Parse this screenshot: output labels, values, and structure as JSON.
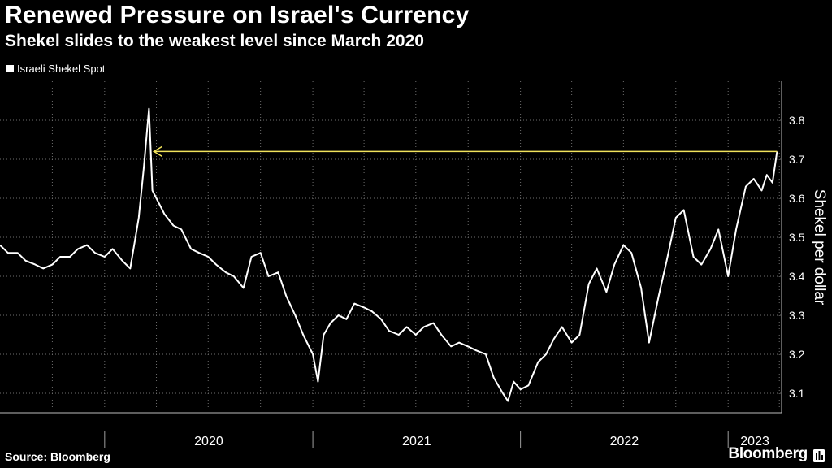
{
  "header": {
    "title": "Renewed Pressure on Israel's Currency",
    "subtitle": "Shekel slides to the weakest level since March 2020"
  },
  "footer": {
    "source": "Source: Bloomberg",
    "brand": "Bloomberg"
  },
  "icons": {
    "brand": "bloomberg-terminal-icon"
  },
  "colors": {
    "background": "#000000",
    "line": "#ffffff",
    "annotation": "#f2e35c",
    "grid": "#6e6e6e"
  },
  "chart_data": {
    "type": "line",
    "title": "Renewed Pressure on Israel's Currency",
    "subtitle": "Shekel slides to the weakest level since March 2020",
    "ylabel": "Shekel per dollar",
    "xlabel": "",
    "ylim": [
      3.05,
      3.9
    ],
    "xlim": [
      "2019-07-01",
      "2023-04-05"
    ],
    "y_ticks": [
      "3.1",
      "3.2",
      "3.3",
      "3.4",
      "3.5",
      "3.6",
      "3.7",
      "3.8"
    ],
    "x_ticks": [
      "2020",
      "2021",
      "2022",
      "2023"
    ],
    "grid": "dotted",
    "y_axis_side": "right",
    "legend": "top-left",
    "annotation": {
      "type": "arrow",
      "level": 3.72,
      "from": "2023-03-28",
      "to": "2020-03-19"
    },
    "series": [
      {
        "name": "Israeli Shekel Spot",
        "points": [
          [
            "2019-07-01",
            3.48
          ],
          [
            "2019-07-15",
            3.46
          ],
          [
            "2019-08-01",
            3.46
          ],
          [
            "2019-08-15",
            3.44
          ],
          [
            "2019-09-01",
            3.43
          ],
          [
            "2019-09-15",
            3.42
          ],
          [
            "2019-10-01",
            3.43
          ],
          [
            "2019-10-15",
            3.45
          ],
          [
            "2019-11-01",
            3.45
          ],
          [
            "2019-11-15",
            3.47
          ],
          [
            "2019-12-01",
            3.48
          ],
          [
            "2019-12-15",
            3.46
          ],
          [
            "2020-01-01",
            3.45
          ],
          [
            "2020-01-15",
            3.47
          ],
          [
            "2020-02-01",
            3.44
          ],
          [
            "2020-02-15",
            3.42
          ],
          [
            "2020-03-01",
            3.55
          ],
          [
            "2020-03-10",
            3.68
          ],
          [
            "2020-03-19",
            3.83
          ],
          [
            "2020-03-25",
            3.62
          ],
          [
            "2020-04-01",
            3.6
          ],
          [
            "2020-04-15",
            3.56
          ],
          [
            "2020-05-01",
            3.53
          ],
          [
            "2020-05-15",
            3.52
          ],
          [
            "2020-06-01",
            3.47
          ],
          [
            "2020-06-15",
            3.46
          ],
          [
            "2020-07-01",
            3.45
          ],
          [
            "2020-07-15",
            3.43
          ],
          [
            "2020-08-01",
            3.41
          ],
          [
            "2020-08-15",
            3.4
          ],
          [
            "2020-09-01",
            3.37
          ],
          [
            "2020-09-15",
            3.45
          ],
          [
            "2020-10-01",
            3.46
          ],
          [
            "2020-10-15",
            3.4
          ],
          [
            "2020-11-01",
            3.41
          ],
          [
            "2020-11-15",
            3.35
          ],
          [
            "2020-12-01",
            3.3
          ],
          [
            "2020-12-15",
            3.25
          ],
          [
            "2021-01-01",
            3.2
          ],
          [
            "2021-01-10",
            3.13
          ],
          [
            "2021-01-20",
            3.25
          ],
          [
            "2021-02-01",
            3.28
          ],
          [
            "2021-02-15",
            3.3
          ],
          [
            "2021-03-01",
            3.29
          ],
          [
            "2021-03-15",
            3.33
          ],
          [
            "2021-04-01",
            3.32
          ],
          [
            "2021-04-15",
            3.31
          ],
          [
            "2021-05-01",
            3.29
          ],
          [
            "2021-05-15",
            3.26
          ],
          [
            "2021-06-01",
            3.25
          ],
          [
            "2021-06-15",
            3.27
          ],
          [
            "2021-07-01",
            3.25
          ],
          [
            "2021-07-15",
            3.27
          ],
          [
            "2021-08-01",
            3.28
          ],
          [
            "2021-08-15",
            3.25
          ],
          [
            "2021-09-01",
            3.22
          ],
          [
            "2021-09-15",
            3.23
          ],
          [
            "2021-10-01",
            3.22
          ],
          [
            "2021-10-15",
            3.21
          ],
          [
            "2021-11-01",
            3.2
          ],
          [
            "2021-11-15",
            3.14
          ],
          [
            "2021-12-01",
            3.1
          ],
          [
            "2021-12-10",
            3.08
          ],
          [
            "2021-12-20",
            3.13
          ],
          [
            "2022-01-01",
            3.11
          ],
          [
            "2022-01-15",
            3.12
          ],
          [
            "2022-02-01",
            3.18
          ],
          [
            "2022-02-15",
            3.2
          ],
          [
            "2022-03-01",
            3.24
          ],
          [
            "2022-03-15",
            3.27
          ],
          [
            "2022-04-01",
            3.23
          ],
          [
            "2022-04-15",
            3.25
          ],
          [
            "2022-05-01",
            3.38
          ],
          [
            "2022-05-15",
            3.42
          ],
          [
            "2022-06-01",
            3.36
          ],
          [
            "2022-06-15",
            3.43
          ],
          [
            "2022-07-01",
            3.48
          ],
          [
            "2022-07-15",
            3.46
          ],
          [
            "2022-08-01",
            3.37
          ],
          [
            "2022-08-15",
            3.23
          ],
          [
            "2022-09-01",
            3.35
          ],
          [
            "2022-09-15",
            3.44
          ],
          [
            "2022-10-01",
            3.55
          ],
          [
            "2022-10-15",
            3.57
          ],
          [
            "2022-11-01",
            3.45
          ],
          [
            "2022-11-15",
            3.43
          ],
          [
            "2022-12-01",
            3.47
          ],
          [
            "2022-12-15",
            3.52
          ],
          [
            "2023-01-01",
            3.4
          ],
          [
            "2023-01-15",
            3.52
          ],
          [
            "2023-02-01",
            3.63
          ],
          [
            "2023-02-15",
            3.65
          ],
          [
            "2023-03-01",
            3.62
          ],
          [
            "2023-03-10",
            3.66
          ],
          [
            "2023-03-20",
            3.64
          ],
          [
            "2023-03-28",
            3.72
          ]
        ]
      }
    ]
  }
}
